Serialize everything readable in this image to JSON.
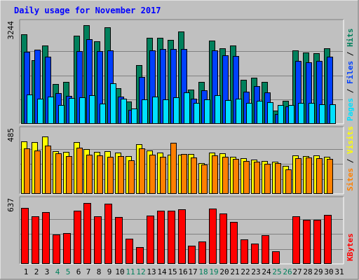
{
  "chart_data": [
    {
      "type": "bar",
      "title": "Daily usage for November 2017",
      "panel": "hits-files-pages",
      "ylabel_max": "3244",
      "ylim": [
        0,
        3244
      ],
      "grid": true,
      "legend": "right side vertical text",
      "categories": [
        "1",
        "2",
        "3",
        "4",
        "5",
        "6",
        "7",
        "8",
        "9",
        "10",
        "11",
        "12",
        "13",
        "14",
        "15",
        "16",
        "17",
        "18",
        "19",
        "20",
        "21",
        "22",
        "23",
        "24",
        "25",
        "26",
        "27",
        "28",
        "29",
        "30",
        "31"
      ],
      "weekend_days": [
        "4",
        "5",
        "11",
        "12",
        "18",
        "19",
        "25",
        "26"
      ],
      "series": [
        {
          "name": "Hits",
          "color": "#00805c",
          "values": [
            2990,
            2120,
            2620,
            1330,
            1400,
            2940,
            3290,
            2760,
            3230,
            1200,
            750,
            1960,
            2870,
            2880,
            2790,
            3090,
            1140,
            1410,
            2780,
            2520,
            2610,
            1470,
            1550,
            1390,
            440,
            780,
            2450,
            2390,
            2360,
            2520,
            0
          ]
        },
        {
          "name": "Files",
          "color": "#0040ff",
          "values": [
            2400,
            2480,
            2240,
            1030,
            940,
            2430,
            2820,
            2420,
            2450,
            920,
            460,
            1560,
            2450,
            2490,
            2500,
            2490,
            830,
            1110,
            2460,
            2290,
            2260,
            1080,
            1250,
            1060,
            330,
            580,
            2110,
            2060,
            2100,
            2250,
            0
          ]
        },
        {
          "name": "Pages",
          "color": "#00e0ff",
          "values": [
            970,
            830,
            920,
            620,
            860,
            880,
            960,
            670,
            1350,
            840,
            510,
            810,
            900,
            810,
            880,
            1060,
            710,
            820,
            960,
            800,
            830,
            710,
            760,
            720,
            620,
            640,
            690,
            700,
            660,
            650,
            0
          ]
        }
      ]
    },
    {
      "type": "bar",
      "panel": "visits-sites",
      "ylabel_max": "485",
      "ylim": [
        0,
        485
      ],
      "grid": true,
      "legend": "right side vertical text",
      "categories": [
        "1",
        "2",
        "3",
        "4",
        "5",
        "6",
        "7",
        "8",
        "9",
        "10",
        "11",
        "12",
        "13",
        "14",
        "15",
        "16",
        "17",
        "18",
        "19",
        "20",
        "21",
        "22",
        "23",
        "24",
        "25",
        "26",
        "27",
        "28",
        "29",
        "30",
        "31"
      ],
      "series": [
        {
          "name": "Visits",
          "color": "#ffff00",
          "values": [
            425,
            420,
            460,
            345,
            340,
            420,
            360,
            340,
            345,
            330,
            305,
            400,
            350,
            330,
            315,
            315,
            320,
            250,
            330,
            325,
            300,
            285,
            275,
            265,
            260,
            225,
            310,
            305,
            310,
            300,
            0
          ]
        },
        {
          "name": "Sites",
          "color": "#ff8000",
          "values": [
            365,
            350,
            390,
            325,
            305,
            375,
            315,
            310,
            300,
            305,
            270,
            365,
            315,
            300,
            410,
            320,
            295,
            235,
            310,
            300,
            280,
            265,
            260,
            240,
            250,
            200,
            290,
            295,
            290,
            280,
            0
          ]
        }
      ]
    },
    {
      "type": "bar",
      "panel": "kbytes",
      "ylabel_max": "637",
      "ylim": [
        0,
        637
      ],
      "grid": true,
      "legend": "right side vertical text",
      "categories": [
        "1",
        "2",
        "3",
        "4",
        "5",
        "6",
        "7",
        "8",
        "9",
        "10",
        "11",
        "12",
        "13",
        "14",
        "15",
        "16",
        "17",
        "18",
        "19",
        "20",
        "21",
        "22",
        "23",
        "24",
        "25",
        "26",
        "27",
        "28",
        "29",
        "30",
        "31"
      ],
      "series": [
        {
          "name": "KBytes",
          "color": "#ff0000",
          "values": [
            590,
            505,
            550,
            310,
            325,
            560,
            645,
            505,
            640,
            495,
            270,
            180,
            510,
            560,
            565,
            580,
            190,
            235,
            585,
            530,
            445,
            260,
            215,
            300,
            135,
            0,
            505,
            470,
            470,
            515,
            0
          ]
        }
      ]
    }
  ],
  "colors": {
    "background": "#c0c0c0",
    "frame_light": "#ffffff",
    "frame_dark": "#808080",
    "title_text": "#0000ff",
    "axis_text": "#000000",
    "weekday_label": "#000000",
    "weekend_label": "#00805c",
    "grid": "#808080"
  }
}
